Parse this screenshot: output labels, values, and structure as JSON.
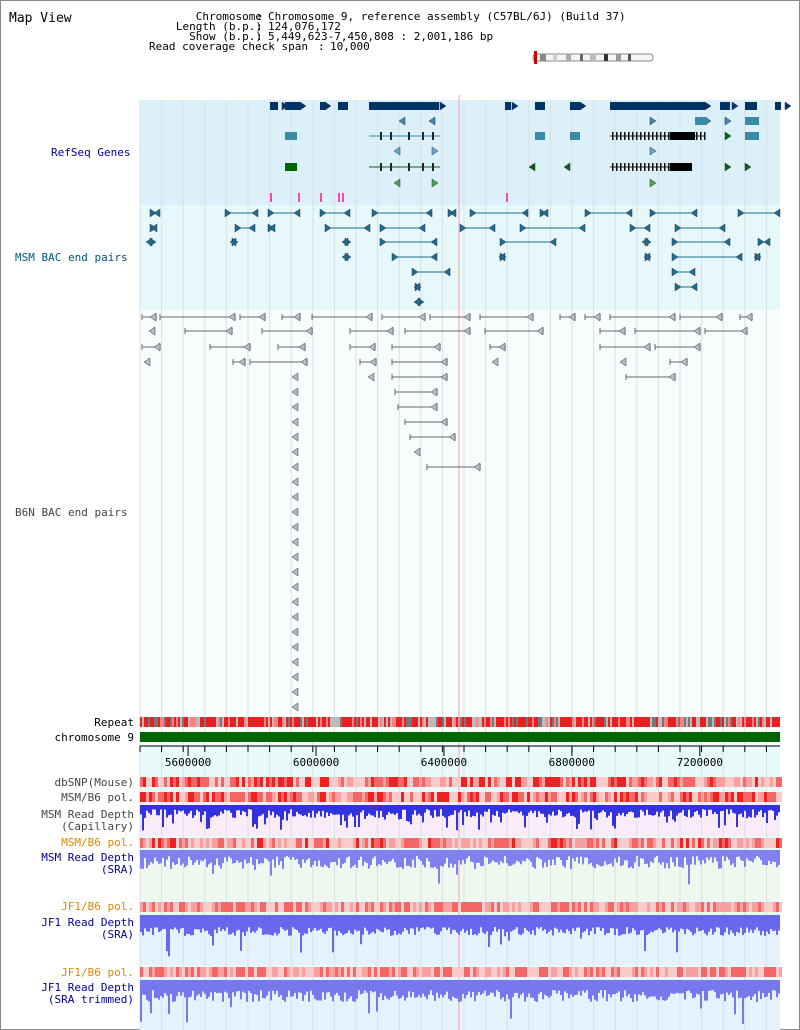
{
  "title": "Map View",
  "info": {
    "chromosome_label": "Chromosome",
    "chromosome_value": "Chromosome 9, reference assembly (C57BL/6J) (Build 37)",
    "length_label": "Length (b.p.)",
    "length_value": "124,076,172",
    "show_label": "Show (b.p.)",
    "show_value": "5,449,623-7,450,808 : 2,001,186 bp",
    "span_label": "Read coverage check span",
    "span_value": "10,000"
  },
  "tracks": {
    "refseq": "RefSeq Genes",
    "msm_bac": "MSM BAC end pairs",
    "b6n_bac": "B6N BAC end pairs",
    "repeat": "Repeat",
    "chromosome": "chromosome 9",
    "dbsnp": "dbSNP(Mouse)",
    "msm_b6_pol_1": "MSM/B6 pol.",
    "msm_depth_cap_1": "MSM Read Depth",
    "msm_depth_cap_2": "(Capillary)",
    "msm_b6_pol_2": "MSM/B6 pol.",
    "msm_depth_sra_1": "MSM Read Depth",
    "msm_depth_sra_2": "(SRA)",
    "jf1_b6_pol_1": "JF1/B6 pol.",
    "jf1_depth_sra_1": "JF1 Read Depth",
    "jf1_depth_sra_2": "(SRA)",
    "jf1_b6_pol_2": "JF1/B6 pol.",
    "jf1_depth_trim_1": "JF1 Read Depth",
    "jf1_depth_trim_2": "(SRA trimmed)"
  },
  "axis": {
    "ticks": [
      "5600000",
      "6000000",
      "6400000",
      "6800000",
      "7200000"
    ],
    "tick_values": [
      5600000,
      6000000,
      6400000,
      6800000,
      7200000
    ],
    "start": 5449623,
    "end": 7450808
  },
  "colors": {
    "refseq_bg": "#dcf0fa",
    "msm_bg": "#e6f8fa",
    "b6n_bg": "#f6fbfc",
    "gene_navy": "#003366",
    "gene_teal": "#3a8aa8",
    "gene_green": "#006600",
    "msm_bac": "#1e6e8c",
    "b6n_bac": "#666666",
    "repeat_red": "#ee2020",
    "chrom_green": "#006400",
    "depth_blue": "#3333dd",
    "label_navy": "#000099",
    "label_teal": "#00557a",
    "label_orange": "#e08800"
  }
}
